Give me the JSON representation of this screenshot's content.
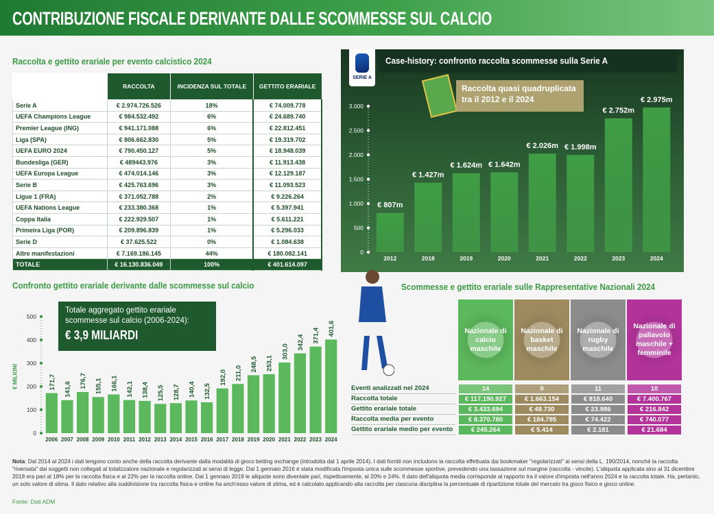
{
  "header": {
    "title": "CONTRIBUZIONE FISCALE DERIVANTE DALLE SCOMMESSE SUL CALCIO"
  },
  "table1": {
    "title": "Raccolta e gettito erariale per evento calcistico 2024",
    "columns": [
      "RACCOLTA",
      "INCIDENZA SUL TOTALE",
      "GETTITO ERARIALE"
    ],
    "rows": [
      [
        "Serie A",
        "€ 2.974.726.526",
        "18%",
        "€ 74.009.778"
      ],
      [
        "UEFA Champions League",
        "€ 984.532.492",
        "6%",
        "€ 24.689.740"
      ],
      [
        "Premier League (ING)",
        "€ 941.171.088",
        "6%",
        "€ 22.812.451"
      ],
      [
        "Liga (SPA)",
        "€ 806.662.830",
        "5%",
        "€ 19.319.702"
      ],
      [
        "UEFA EURO 2024",
        "€ 790.450.127",
        "5%",
        "€ 18.948.039"
      ],
      [
        "Bundesliga (GER)",
        "€ 489443.976",
        "3%",
        "€ 11.913.438"
      ],
      [
        "UEFA Europa League",
        "€ 474.014.146",
        "3%",
        "€ 12.129.187"
      ],
      [
        "Serie B",
        "€ 425.763.696",
        "3%",
        "€ 11.093.523"
      ],
      [
        "Ligue 1 (FRA)",
        "€ 371.052.788",
        "2%",
        "€ 9.226.264"
      ],
      [
        "UEFA Nations League",
        "€ 233.380.368",
        "1%",
        "€ 5.397.941"
      ],
      [
        "Coppa Italia",
        "€ 222.929.507",
        "1%",
        "€ 5.611.221"
      ],
      [
        "Primeira Liga (POR)",
        "€ 209.896.839",
        "1%",
        "€ 5.296.033"
      ],
      [
        "Serie D",
        "€ 37.625.522",
        "0%",
        "€ 1.084.638"
      ],
      [
        "Altre manifestazioni",
        "€ 7.169.186.145",
        "44%",
        "€ 180.082.141"
      ]
    ],
    "total": [
      "TOTALE",
      "€ 16.130.836.049",
      "100%",
      "€ 401.614.097"
    ]
  },
  "chart_data": [
    {
      "type": "bar",
      "title": "Case-history: confronto raccolta scommesse sulla Serie A",
      "logo_text": "SERIE A",
      "annotation": "Raccolta quasi quadruplicata tra il 2012 e il 2024",
      "categories": [
        "2012",
        "2018",
        "2019",
        "2020",
        "2021",
        "2022",
        "2023",
        "2024"
      ],
      "values": [
        807,
        1427,
        1624,
        1642,
        2026,
        1998,
        2752,
        2975
      ],
      "value_labels": [
        "€ 807m",
        "€ 1.427m",
        "€ 1.624m",
        "€ 1.642m",
        "€ 2.026m",
        "€ 1.998m",
        "€ 2.752m",
        "€ 2.975m"
      ],
      "ylim": [
        0,
        3000
      ],
      "yticks": [
        0,
        500,
        {
          "value": 1000,
          "label": "1.000"
        },
        {
          "value": 1500,
          "label": "1.500"
        },
        {
          "value": 2000,
          "label": "2.000"
        },
        {
          "value": 2500,
          "label": "2.500"
        },
        {
          "value": 3000,
          "label": "3.000"
        }
      ],
      "color": "#3f9e45"
    },
    {
      "type": "bar",
      "title": "Confronto gettito erariale derivante dalle scommesse sul calcio",
      "annotation": "Totale aggregato gettito erariale scommesse sul calcio (2006-2024):",
      "annotation_value": "€ 3,9 MILIARDI",
      "y_label": "€ MILIONI",
      "categories": [
        "2006",
        "2007",
        "2008",
        "2009",
        "2010",
        "2011",
        "2012",
        "2013",
        "2014",
        "2015",
        "2016",
        "2017",
        "2018",
        "2019",
        "2020",
        "2021",
        "2022",
        "2023",
        "2024"
      ],
      "values": [
        171.7,
        141.6,
        176.7,
        155.1,
        166.1,
        142.1,
        138.4,
        125.5,
        128.7,
        140.4,
        132.5,
        192.0,
        211.0,
        248.5,
        253.1,
        303.0,
        342.4,
        371.4,
        401.6
      ],
      "value_labels": [
        "171,7",
        "141,6",
        "176,7",
        "155,1",
        "166,1",
        "142,1",
        "138,4",
        "125,5",
        "128,7",
        "140,4",
        "132,5",
        "192,0",
        "211,0",
        "248,5",
        "253,1",
        "303,0",
        "342,4",
        "371,4",
        "401,6"
      ],
      "ylim": [
        0,
        500
      ],
      "yticks": [
        0,
        100,
        200,
        300,
        400,
        500
      ],
      "color": "#5cb85c"
    }
  ],
  "national": {
    "title": "Scommesse e gettito erariale sulle Rappresentative Nazionali 2024",
    "columns": [
      "Nazionale di calcio maschile",
      "Nazionale di basket maschile",
      "Nazionale di rugby maschile",
      "Nazionale di pallavolo maschile + femminile"
    ],
    "colors": [
      "#5cb85c",
      "#9d8b5f",
      "#8c8c8c",
      "#b3339b"
    ],
    "rows": [
      {
        "label": "Eventi analizzati nel 2024",
        "values": [
          "14",
          "9",
          "11",
          "10"
        ]
      },
      {
        "label": "Raccolta totale",
        "values": [
          "€ 117.190.927",
          "€ 1.663.154",
          "€ 818.640",
          "€ 7.400.767"
        ]
      },
      {
        "label": "Gettito erariale totale",
        "values": [
          "€ 3.433.694",
          "€ 48.730",
          "€ 23.986",
          "€ 216.842"
        ]
      },
      {
        "label": "Raccolta media per evento",
        "values": [
          "€ 8.370.780",
          "€ 184.795",
          "€ 74.422",
          "€ 740.077"
        ]
      },
      {
        "label": "Gettito erariale medio per evento",
        "values": [
          "€ 245.264",
          "€ 5.414",
          "€ 2.181",
          "€ 21.684"
        ]
      }
    ]
  },
  "note": {
    "label": "Nota",
    "text": ": Dal 2014 al 2024 i dati tengono conto anche della raccolta derivante dalla modalità di gioco betting exchange (introdotta dal 1 aprile 2014). I dati forniti non includono la raccolta effettuata dai bookmaker \"regolarizzati\" ai sensi della L. 190/2014, nonché la raccolta \"riversata\" dai soggetti non collegati al totalizzatore nazionale e regolarizzati ai sensi di legge. Dal 1 gennaio 2016 è stata modificata l'imposta unica sulle scommesse sportive, prevedendo una tassazione sul margine (raccolta - vincite). L'aliquota applicata sino al 31 dicembre 2018 era pari al 18% per la raccolta fisica e al 22% per la raccolta online. Dal 1 gennaio 2019 le aliquote sono diventate pari, rispettivamente, al 20% e 24%. Il dato dell'aliquota media corrisponde al rapporto tra il valore d'imposta nell'anno 2024 e la raccolta totale. Ha, pertanto, un solo valore di stima. Il dato relativo alla suddivisione tra raccolta fisica e online ha anch'esso valore di stima, ed è calcolato applicando alla raccolta per ciascuna disciplina la percentuale di ripartizione totale del mercato tra gioco fisico e gioco online."
  },
  "source": "Fonte: Dati ADM"
}
